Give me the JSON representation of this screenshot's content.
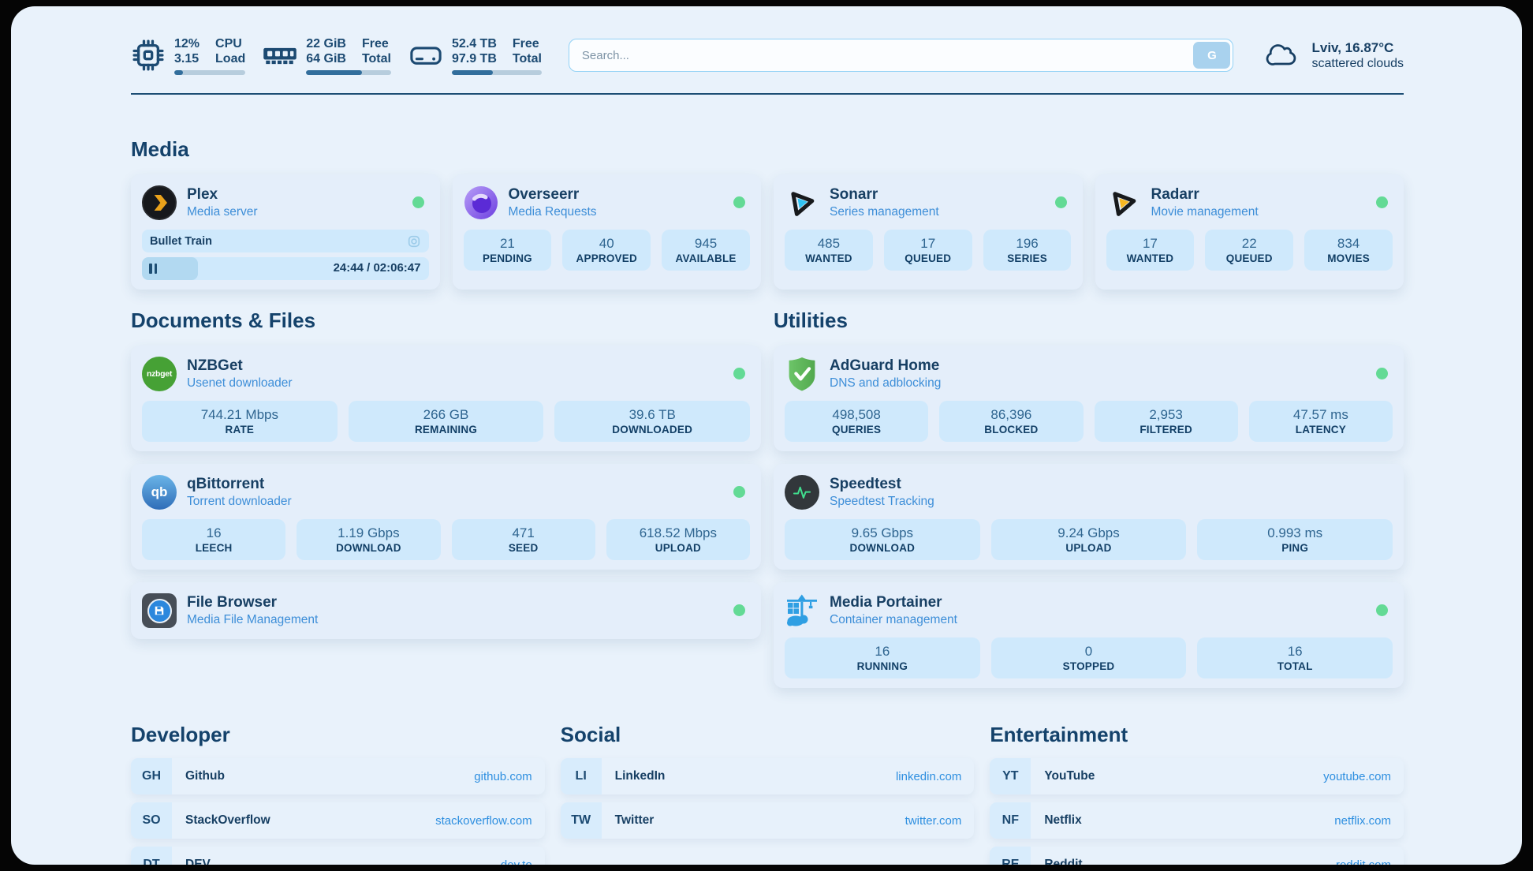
{
  "topbar": {
    "resources": [
      {
        "icon": "cpu-icon",
        "value1": "12%",
        "value2": "3.15",
        "label1": "CPU",
        "label2": "Load",
        "progress": 12
      },
      {
        "icon": "memory-icon",
        "value1": "22 GiB",
        "value2": "64 GiB",
        "label1": "Free",
        "label2": "Total",
        "progress": 66
      },
      {
        "icon": "disk-icon",
        "value1": "52.4 TB",
        "value2": "97.9 TB",
        "label1": "Free",
        "label2": "Total",
        "progress": 46
      }
    ],
    "search": {
      "placeholder": "Search...",
      "button_label": "G"
    },
    "weather": {
      "location": "Lviv, 16.87°C",
      "condition": "scattered clouds"
    }
  },
  "groups": {
    "media": {
      "title": "Media",
      "plex": {
        "name": "Plex",
        "description": "Media server",
        "now_playing": "Bullet Train",
        "time": "24:44 / 02:06:47",
        "progress_percent": 19.5
      },
      "overseerr": {
        "name": "Overseerr",
        "description": "Media Requests",
        "stats": [
          {
            "value": "21",
            "label": "PENDING"
          },
          {
            "value": "40",
            "label": "APPROVED"
          },
          {
            "value": "945",
            "label": "AVAILABLE"
          }
        ]
      },
      "sonarr": {
        "name": "Sonarr",
        "description": "Series management",
        "stats": [
          {
            "value": "485",
            "label": "WANTED"
          },
          {
            "value": "17",
            "label": "QUEUED"
          },
          {
            "value": "196",
            "label": "SERIES"
          }
        ]
      },
      "radarr": {
        "name": "Radarr",
        "description": "Movie management",
        "stats": [
          {
            "value": "17",
            "label": "WANTED"
          },
          {
            "value": "22",
            "label": "QUEUED"
          },
          {
            "value": "834",
            "label": "MOVIES"
          }
        ]
      }
    },
    "documents": {
      "title": "Documents & Files",
      "nzbget": {
        "name": "NZBGet",
        "description": "Usenet downloader",
        "stats": [
          {
            "value": "744.21 Mbps",
            "label": "RATE"
          },
          {
            "value": "266 GB",
            "label": "REMAINING"
          },
          {
            "value": "39.6 TB",
            "label": "DOWNLOADED"
          }
        ]
      },
      "qbittorrent": {
        "name": "qBittorrent",
        "description": "Torrent downloader",
        "stats": [
          {
            "value": "16",
            "label": "LEECH"
          },
          {
            "value": "1.19 Gbps",
            "label": "DOWNLOAD"
          },
          {
            "value": "471",
            "label": "SEED"
          },
          {
            "value": "618.52 Mbps",
            "label": "UPLOAD"
          }
        ]
      },
      "filebrowser": {
        "name": "File Browser",
        "description": "Media File Management"
      }
    },
    "utilities": {
      "title": "Utilities",
      "adguard": {
        "name": "AdGuard Home",
        "description": "DNS and adblocking",
        "stats": [
          {
            "value": "498,508",
            "label": "QUERIES"
          },
          {
            "value": "86,396",
            "label": "BLOCKED"
          },
          {
            "value": "2,953",
            "label": "FILTERED"
          },
          {
            "value": "47.57 ms",
            "label": "LATENCY"
          }
        ]
      },
      "speedtest": {
        "name": "Speedtest",
        "description": "Speedtest Tracking",
        "stats": [
          {
            "value": "9.65 Gbps",
            "label": "DOWNLOAD"
          },
          {
            "value": "9.24 Gbps",
            "label": "UPLOAD"
          },
          {
            "value": "0.993 ms",
            "label": "PING"
          }
        ]
      },
      "portainer": {
        "name": "Media Portainer",
        "description": "Container management",
        "stats": [
          {
            "value": "16",
            "label": "RUNNING"
          },
          {
            "value": "0",
            "label": "STOPPED"
          },
          {
            "value": "16",
            "label": "TOTAL"
          }
        ]
      }
    }
  },
  "bookmarks": [
    {
      "title": "Developer",
      "items": [
        {
          "abbr": "GH",
          "name": "Github",
          "url": "github.com"
        },
        {
          "abbr": "SO",
          "name": "StackOverflow",
          "url": "stackoverflow.com"
        },
        {
          "abbr": "DT",
          "name": "DEV",
          "url": "dev.to"
        }
      ]
    },
    {
      "title": "Social",
      "items": [
        {
          "abbr": "LI",
          "name": "LinkedIn",
          "url": "linkedin.com"
        },
        {
          "abbr": "TW",
          "name": "Twitter",
          "url": "twitter.com"
        }
      ]
    },
    {
      "title": "Entertainment",
      "items": [
        {
          "abbr": "YT",
          "name": "YouTube",
          "url": "youtube.com"
        },
        {
          "abbr": "NF",
          "name": "Netflix",
          "url": "netflix.com"
        },
        {
          "abbr": "RE",
          "name": "Reddit",
          "url": "reddit.com"
        }
      ]
    }
  ],
  "colors": {
    "page_bg": "#e9f2fb",
    "card_bg": "#e4eefa",
    "stat_bg": "#cfe9fc",
    "heading_text": "#14426b",
    "subtitle_blue": "#3d8ed8",
    "link_blue": "#2e8fe0",
    "status_green": "#63da95",
    "progress_fill": "#326e9c"
  }
}
